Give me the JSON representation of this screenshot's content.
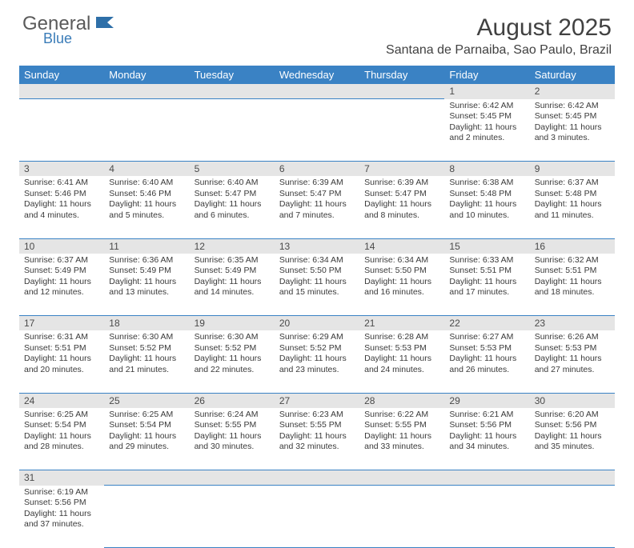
{
  "logo": {
    "text1": "General",
    "text2": "Blue"
  },
  "title": "August 2025",
  "location": "Santana de Parnaiba, Sao Paulo, Brazil",
  "colors": {
    "header_bg": "#3a82c4",
    "header_text": "#ffffff",
    "daynum_bg": "#e5e5e5",
    "daynum_text": "#4a4a4a",
    "body_text": "#3a3a3a",
    "title_text": "#414141",
    "logo_gray": "#5a5a5a",
    "logo_blue": "#3a7cb8",
    "border": "#3a82c4"
  },
  "weekdays": [
    "Sunday",
    "Monday",
    "Tuesday",
    "Wednesday",
    "Thursday",
    "Friday",
    "Saturday"
  ],
  "days": {
    "1": {
      "sunrise": "6:42 AM",
      "sunset": "5:45 PM",
      "daylight": "11 hours and 2 minutes."
    },
    "2": {
      "sunrise": "6:42 AM",
      "sunset": "5:45 PM",
      "daylight": "11 hours and 3 minutes."
    },
    "3": {
      "sunrise": "6:41 AM",
      "sunset": "5:46 PM",
      "daylight": "11 hours and 4 minutes."
    },
    "4": {
      "sunrise": "6:40 AM",
      "sunset": "5:46 PM",
      "daylight": "11 hours and 5 minutes."
    },
    "5": {
      "sunrise": "6:40 AM",
      "sunset": "5:47 PM",
      "daylight": "11 hours and 6 minutes."
    },
    "6": {
      "sunrise": "6:39 AM",
      "sunset": "5:47 PM",
      "daylight": "11 hours and 7 minutes."
    },
    "7": {
      "sunrise": "6:39 AM",
      "sunset": "5:47 PM",
      "daylight": "11 hours and 8 minutes."
    },
    "8": {
      "sunrise": "6:38 AM",
      "sunset": "5:48 PM",
      "daylight": "11 hours and 10 minutes."
    },
    "9": {
      "sunrise": "6:37 AM",
      "sunset": "5:48 PM",
      "daylight": "11 hours and 11 minutes."
    },
    "10": {
      "sunrise": "6:37 AM",
      "sunset": "5:49 PM",
      "daylight": "11 hours and 12 minutes."
    },
    "11": {
      "sunrise": "6:36 AM",
      "sunset": "5:49 PM",
      "daylight": "11 hours and 13 minutes."
    },
    "12": {
      "sunrise": "6:35 AM",
      "sunset": "5:49 PM",
      "daylight": "11 hours and 14 minutes."
    },
    "13": {
      "sunrise": "6:34 AM",
      "sunset": "5:50 PM",
      "daylight": "11 hours and 15 minutes."
    },
    "14": {
      "sunrise": "6:34 AM",
      "sunset": "5:50 PM",
      "daylight": "11 hours and 16 minutes."
    },
    "15": {
      "sunrise": "6:33 AM",
      "sunset": "5:51 PM",
      "daylight": "11 hours and 17 minutes."
    },
    "16": {
      "sunrise": "6:32 AM",
      "sunset": "5:51 PM",
      "daylight": "11 hours and 18 minutes."
    },
    "17": {
      "sunrise": "6:31 AM",
      "sunset": "5:51 PM",
      "daylight": "11 hours and 20 minutes."
    },
    "18": {
      "sunrise": "6:30 AM",
      "sunset": "5:52 PM",
      "daylight": "11 hours and 21 minutes."
    },
    "19": {
      "sunrise": "6:30 AM",
      "sunset": "5:52 PM",
      "daylight": "11 hours and 22 minutes."
    },
    "20": {
      "sunrise": "6:29 AM",
      "sunset": "5:52 PM",
      "daylight": "11 hours and 23 minutes."
    },
    "21": {
      "sunrise": "6:28 AM",
      "sunset": "5:53 PM",
      "daylight": "11 hours and 24 minutes."
    },
    "22": {
      "sunrise": "6:27 AM",
      "sunset": "5:53 PM",
      "daylight": "11 hours and 26 minutes."
    },
    "23": {
      "sunrise": "6:26 AM",
      "sunset": "5:53 PM",
      "daylight": "11 hours and 27 minutes."
    },
    "24": {
      "sunrise": "6:25 AM",
      "sunset": "5:54 PM",
      "daylight": "11 hours and 28 minutes."
    },
    "25": {
      "sunrise": "6:25 AM",
      "sunset": "5:54 PM",
      "daylight": "11 hours and 29 minutes."
    },
    "26": {
      "sunrise": "6:24 AM",
      "sunset": "5:55 PM",
      "daylight": "11 hours and 30 minutes."
    },
    "27": {
      "sunrise": "6:23 AM",
      "sunset": "5:55 PM",
      "daylight": "11 hours and 32 minutes."
    },
    "28": {
      "sunrise": "6:22 AM",
      "sunset": "5:55 PM",
      "daylight": "11 hours and 33 minutes."
    },
    "29": {
      "sunrise": "6:21 AM",
      "sunset": "5:56 PM",
      "daylight": "11 hours and 34 minutes."
    },
    "30": {
      "sunrise": "6:20 AM",
      "sunset": "5:56 PM",
      "daylight": "11 hours and 35 minutes."
    },
    "31": {
      "sunrise": "6:19 AM",
      "sunset": "5:56 PM",
      "daylight": "11 hours and 37 minutes."
    }
  },
  "layout": {
    "first_weekday_index": 5,
    "num_days": 31,
    "labels": {
      "sunrise": "Sunrise:",
      "sunset": "Sunset:",
      "daylight": "Daylight:"
    }
  }
}
